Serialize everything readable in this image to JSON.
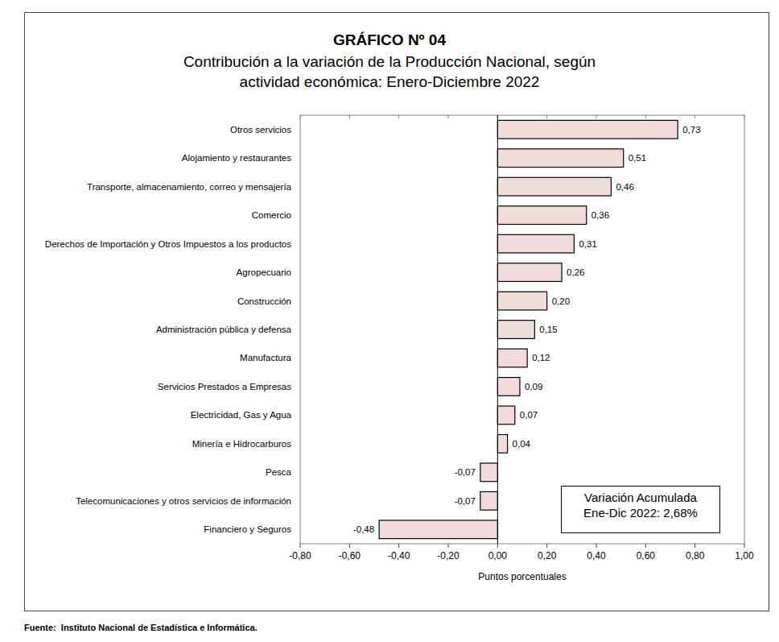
{
  "chart_data": {
    "type": "bar",
    "orientation": "horizontal",
    "title": "GRÁFICO Nº 04",
    "subtitle": "Contribución a la variación de la Producción Nacional, según\nactividad económica: Enero-Diciembre 2022",
    "categories": [
      "Otros servicios",
      "Alojamiento y restaurantes",
      "Transporte, almacenamiento, correo y mensajería",
      "Comercio",
      "Derechos de Importación y Otros Impuestos a los productos",
      "Agropecuario",
      "Construcción",
      "Administración pública y defensa",
      "Manufactura",
      "Servicios Prestados a Empresas",
      "Electricidad, Gas y Agua",
      "Minería e Hidrocarburos",
      "Pesca",
      "Telecomunicaciones y otros servicios de información",
      "Financiero y Seguros"
    ],
    "values": [
      0.73,
      0.51,
      0.46,
      0.36,
      0.31,
      0.26,
      0.2,
      0.15,
      0.12,
      0.09,
      0.07,
      0.04,
      -0.07,
      -0.07,
      -0.48
    ],
    "value_labels": [
      "0,73",
      "0,51",
      "0,46",
      "0,36",
      "0,31",
      "0,26",
      "0,20",
      "0,15",
      "0,12",
      "0,09",
      "0,07",
      "0,04",
      "-0,07",
      "-0,07",
      "-0,48"
    ],
    "data_labels": true,
    "color": "#f2dcdb",
    "xlim": [
      -0.8,
      1.0
    ],
    "xticks": [
      {
        "value": -0.8,
        "label": "-0,80"
      },
      {
        "value": -0.6,
        "label": "-0,60"
      },
      {
        "value": -0.4,
        "label": "-0,40"
      },
      {
        "value": -0.2,
        "label": "-0,20"
      },
      {
        "value": 0,
        "label": "0,00"
      },
      {
        "value": 0.2,
        "label": "0,20"
      },
      {
        "value": 0.4,
        "label": "0,40"
      },
      {
        "value": 0.6,
        "label": "0,60"
      },
      {
        "value": 0.8,
        "label": "0,80"
      },
      {
        "value": 1.0,
        "label": "1,00"
      }
    ],
    "xlabel": "Puntos porcentuales",
    "grid": false,
    "annotation": [
      "Variación Acumulada",
      "Ene-Dic 2022: 2,68%"
    ],
    "source": "Fuente:  Instituto Nacional de Estadística e Informática."
  }
}
